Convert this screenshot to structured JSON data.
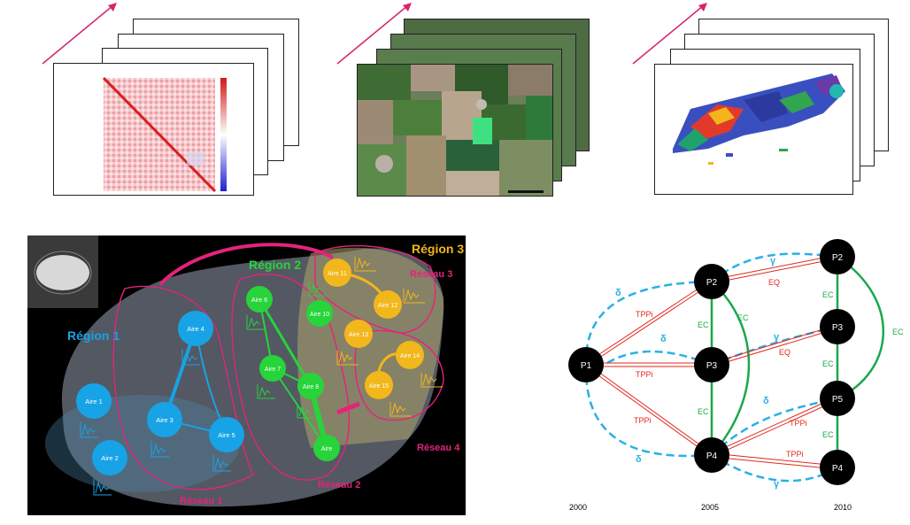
{
  "brain": {
    "regions": [
      {
        "id": "r1",
        "label": "Région 1",
        "color": "#17a3e6"
      },
      {
        "id": "r2",
        "label": "Région 2",
        "color": "#27d43a"
      },
      {
        "id": "r3",
        "label": "Région 3",
        "color": "#f2b71b"
      }
    ],
    "networks": [
      "Réseau 1",
      "Réseau 2",
      "Réseau 3",
      "Réseau 4"
    ],
    "areas": {
      "a1": "Aire 1",
      "a2": "Aire 2",
      "a3": "Aire 3",
      "a4": "Aire 4",
      "a5": "Aire 5",
      "a6": "Aire 6",
      "a7": "Aire 7",
      "a8": "Aire 8",
      "a9": "Aire",
      "a10": "Aire 10",
      "a11": "Aire 11",
      "a12": "Aire 12",
      "a13": "Aire 13",
      "a14": "Aire 14",
      "a15": "Aire 15"
    }
  },
  "graph": {
    "nodes": {
      "p1": "P1",
      "p2a": "P2",
      "p3a": "P3",
      "p4a": "P4",
      "p2b": "P2",
      "p3b": "P3",
      "p5b": "P5",
      "p4b": "P4"
    },
    "edge_labels": {
      "tppi": "TPPi",
      "eq": "EQ",
      "ec": "EC",
      "delta": "δ",
      "gamma": "γ"
    },
    "years": [
      "2000",
      "2005",
      "2010"
    ]
  },
  "colors": {
    "red": "#e0291f",
    "green": "#1aa84a",
    "dashed": "#2ab0e6",
    "arrow": "#d6246e",
    "pink": "#e3247a"
  }
}
